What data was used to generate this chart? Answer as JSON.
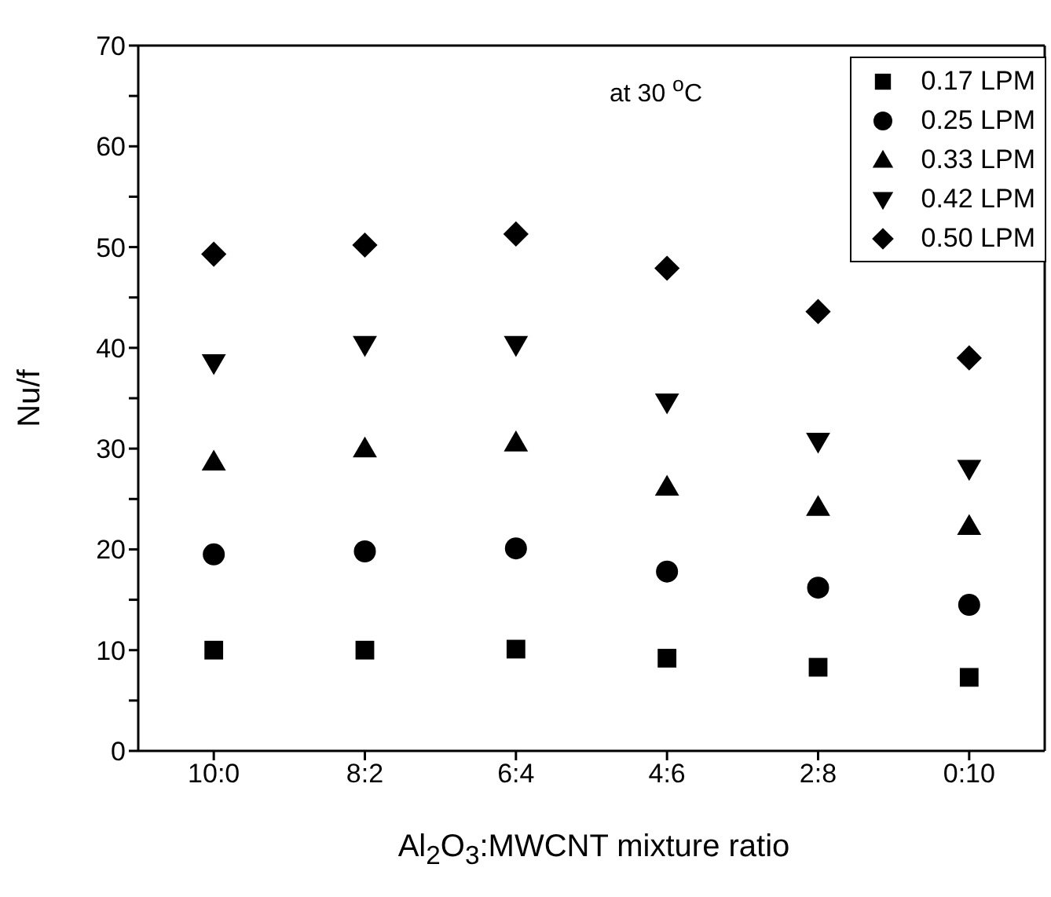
{
  "chart_data": {
    "type": "scatter",
    "xlabel": "Al$_{2}$O$_{3}$:MWCNT mixture ratio",
    "ylabel": "Nu/f",
    "annotations": [
      "at 30 $^{o}$C"
    ],
    "categories": [
      "10:0",
      "8:2",
      "6:4",
      "4:6",
      "2:8",
      "0:10"
    ],
    "series": [
      {
        "name": "0.17 LPM",
        "color": "#000000",
        "marker": "square",
        "values": [
          10.0,
          10.0,
          10.1,
          9.2,
          8.3,
          7.3
        ]
      },
      {
        "name": "0.25 LPM",
        "color": "#000000",
        "marker": "circle",
        "values": [
          19.5,
          19.8,
          20.1,
          17.8,
          16.2,
          14.5
        ]
      },
      {
        "name": "0.33 LPM",
        "color": "#000000",
        "marker": "triangle",
        "values": [
          28.7,
          30.0,
          30.6,
          26.2,
          24.2,
          22.3
        ]
      },
      {
        "name": "0.42 LPM",
        "color": "#000000",
        "marker": "triangle-down",
        "values": [
          38.5,
          40.3,
          40.3,
          34.6,
          30.7,
          28.0
        ]
      },
      {
        "name": "0.50 LPM",
        "color": "#000000",
        "marker": "diamond",
        "values": [
          49.3,
          50.2,
          51.3,
          47.9,
          43.6,
          39.0
        ]
      }
    ],
    "ylim": [
      0,
      70
    ],
    "yticks": [
      0,
      {
        "value": 5,
        "label": null
      },
      10,
      {
        "value": 15,
        "label": null
      },
      20,
      {
        "value": 25,
        "label": null
      },
      30,
      {
        "value": 35,
        "label": null
      },
      40,
      {
        "value": 45,
        "label": null
      },
      50,
      {
        "value": 55,
        "label": null
      },
      60,
      {
        "value": 65,
        "label": null
      },
      70
    ],
    "legend": "top right"
  }
}
